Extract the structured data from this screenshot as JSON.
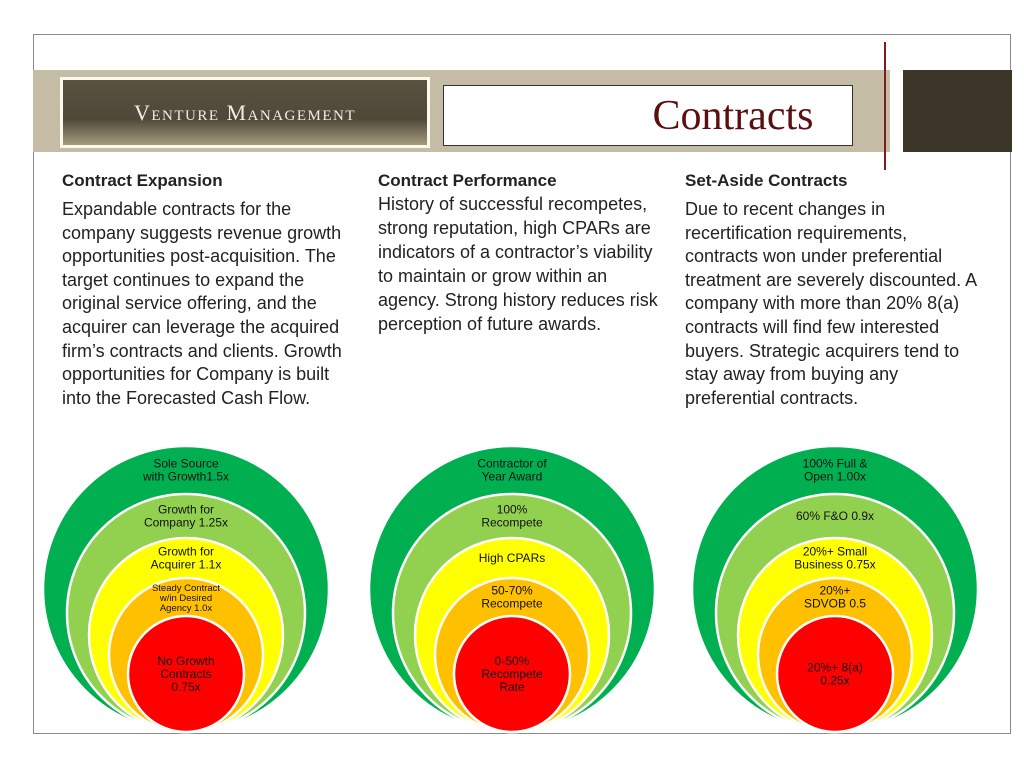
{
  "header": {
    "logo": "Venture Management",
    "title": "Contracts"
  },
  "columns": [
    {
      "heading": "Contract Expansion",
      "body": "Expandable contracts for the company suggests revenue growth opportunities post-acquisition.  The target continues to expand the original service offering, and the acquirer can leverage the acquired firm’s contracts and clients.  Growth opportunities for Company is built into the Forecasted Cash Flow."
    },
    {
      "heading": "Contract Performance",
      "body": "History of successful recompetes, strong reputation, high CPARs are indicators of a contractor’s viability to maintain or grow within an agency.  Strong history reduces risk perception of future awards."
    },
    {
      "heading": "Set-Aside Contracts",
      "body": "Due to recent changes in recertification requirements, contracts won under preferential treatment are severely discounted.  A company with more than 20% 8(a) contracts will find few interested buyers. Strategic acquirers tend to stay away from buying any preferential contracts."
    }
  ],
  "colors": [
    "#00b050",
    "#92d050",
    "#ffff00",
    "#ffc000",
    "#ff0000"
  ],
  "diagrams": [
    {
      "rings": [
        [
          "Sole Source",
          "with Growth1.5x"
        ],
        [
          "Growth for",
          "Company 1.25x"
        ],
        [
          "Growth for",
          "Acquirer 1.1x"
        ],
        [
          "Steady Contract",
          "w/in Desired",
          "Agency 1.0x"
        ],
        [
          "No Growth",
          "Contracts",
          "0.75x"
        ]
      ]
    },
    {
      "rings": [
        [
          "Contractor of",
          "Year Award"
        ],
        [
          "100%",
          "Recompete"
        ],
        [
          "High CPARs"
        ],
        [
          "50-70%",
          "Recompete"
        ],
        [
          "0-50%",
          "Recompete",
          "Rate"
        ]
      ]
    },
    {
      "rings": [
        [
          "100% Full &",
          "Open  1.00x"
        ],
        [
          "60% F&O 0.9x"
        ],
        [
          "20%+ Small",
          "Business 0.75x"
        ],
        [
          "20%+",
          "SDVOB 0.5"
        ],
        [
          "20%+ 8(a)",
          "0.25x"
        ]
      ]
    }
  ]
}
